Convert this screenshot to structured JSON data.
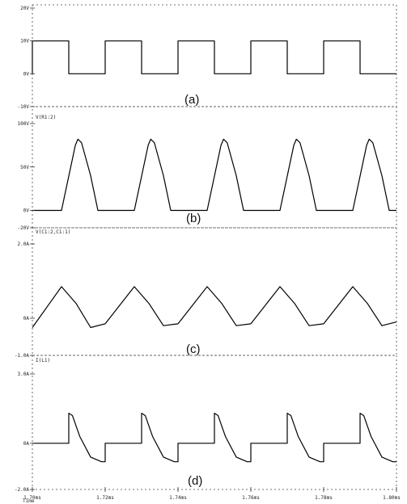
{
  "chart_data": [
    {
      "type": "line",
      "panel_label": "(a)",
      "trace_label": "",
      "x_range": [
        1.7,
        1.8
      ],
      "ylim": [
        -10,
        20
      ],
      "y_tick_labels": [
        "20V",
        "10V",
        "0V",
        "-10V"
      ],
      "y_tick_values": [
        20,
        10,
        0,
        -10
      ],
      "x": [
        1.7,
        1.7,
        1.71,
        1.71,
        1.72,
        1.72,
        1.73,
        1.73,
        1.74,
        1.74,
        1.75,
        1.75,
        1.76,
        1.76,
        1.77,
        1.77,
        1.78,
        1.78,
        1.79,
        1.79,
        1.8
      ],
      "y": [
        0,
        10,
        10,
        0,
        0,
        10,
        10,
        0,
        0,
        10,
        10,
        0,
        0,
        10,
        10,
        0,
        0,
        10,
        10,
        0,
        0
      ]
    },
    {
      "type": "line",
      "panel_label": "(b)",
      "trace_label": "V(R1:2)",
      "x_range": [
        1.7,
        1.8
      ],
      "ylim": [
        -20,
        100
      ],
      "y_tick_labels": [
        "100V",
        "50V",
        "0V",
        "-20V"
      ],
      "y_tick_values": [
        100,
        50,
        0,
        -20
      ],
      "x": [
        1.7,
        1.708,
        1.7118,
        1.7125,
        1.7135,
        1.716,
        1.718,
        1.728,
        1.7318,
        1.7325,
        1.7335,
        1.736,
        1.738,
        1.748,
        1.7518,
        1.7525,
        1.7535,
        1.756,
        1.758,
        1.768,
        1.7718,
        1.7725,
        1.7735,
        1.776,
        1.778,
        1.788,
        1.7918,
        1.7925,
        1.7935,
        1.796,
        1.798,
        1.8
      ],
      "y": [
        0,
        0,
        75,
        82,
        78,
        40,
        0,
        0,
        75,
        82,
        78,
        40,
        0,
        0,
        75,
        82,
        78,
        40,
        0,
        0,
        75,
        82,
        78,
        40,
        0,
        0,
        75,
        82,
        78,
        40,
        0,
        0
      ]
    },
    {
      "type": "line",
      "panel_label": "(c)",
      "trace_label": "V(C1:2,C1:1)",
      "x_range": [
        1.7,
        1.8
      ],
      "ylim": [
        -1.0,
        2.0
      ],
      "y_tick_labels": [
        "2.0A",
        "0A",
        "-1.0A"
      ],
      "y_tick_values": [
        2.0,
        0,
        -1.0
      ],
      "x": [
        1.7,
        1.704,
        1.708,
        1.712,
        1.716,
        1.72,
        1.724,
        1.728,
        1.732,
        1.736,
        1.74,
        1.744,
        1.748,
        1.752,
        1.756,
        1.76,
        1.764,
        1.768,
        1.772,
        1.776,
        1.78,
        1.784,
        1.788,
        1.792,
        1.796,
        1.8
      ],
      "y": [
        -0.25,
        0.3,
        0.85,
        0.4,
        -0.25,
        -0.15,
        0.35,
        0.85,
        0.4,
        -0.2,
        -0.15,
        0.35,
        0.85,
        0.4,
        -0.2,
        -0.15,
        0.35,
        0.85,
        0.4,
        -0.2,
        -0.15,
        0.35,
        0.85,
        0.4,
        -0.2,
        -0.1
      ]
    },
    {
      "type": "line",
      "panel_label": "(d)",
      "trace_label": "I(L1)",
      "x_range": [
        1.7,
        1.8
      ],
      "x_tick_labels": [
        "1.70ms",
        "1.72ms",
        "1.74ms",
        "1.76ms",
        "1.78ms",
        "1.80ms"
      ],
      "x_tick_values": [
        1.7,
        1.72,
        1.74,
        1.76,
        1.78,
        1.8
      ],
      "xlabel": "Time",
      "ylim": [
        -2.0,
        3.0
      ],
      "y_tick_labels": [
        "3.0A",
        "0A",
        "-2.0A"
      ],
      "y_tick_values": [
        3.0,
        0,
        -2.0
      ],
      "x": [
        1.7,
        1.71,
        1.71,
        1.711,
        1.713,
        1.716,
        1.719,
        1.72,
        1.72,
        1.73,
        1.73,
        1.731,
        1.733,
        1.736,
        1.739,
        1.74,
        1.74,
        1.75,
        1.75,
        1.751,
        1.753,
        1.756,
        1.759,
        1.76,
        1.76,
        1.77,
        1.77,
        1.771,
        1.773,
        1.776,
        1.779,
        1.78,
        1.78,
        1.79,
        1.79,
        1.791,
        1.793,
        1.796,
        1.799,
        1.8
      ],
      "y": [
        0,
        0,
        1.3,
        1.2,
        0.3,
        -0.6,
        -0.8,
        -0.8,
        0,
        0,
        1.3,
        1.2,
        0.3,
        -0.6,
        -0.8,
        -0.8,
        0,
        0,
        1.3,
        1.2,
        0.3,
        -0.6,
        -0.8,
        -0.8,
        0,
        0,
        1.3,
        1.2,
        0.3,
        -0.6,
        -0.8,
        -0.8,
        0,
        0,
        1.3,
        1.2,
        0.3,
        -0.6,
        -0.8,
        -0.8
      ]
    }
  ]
}
